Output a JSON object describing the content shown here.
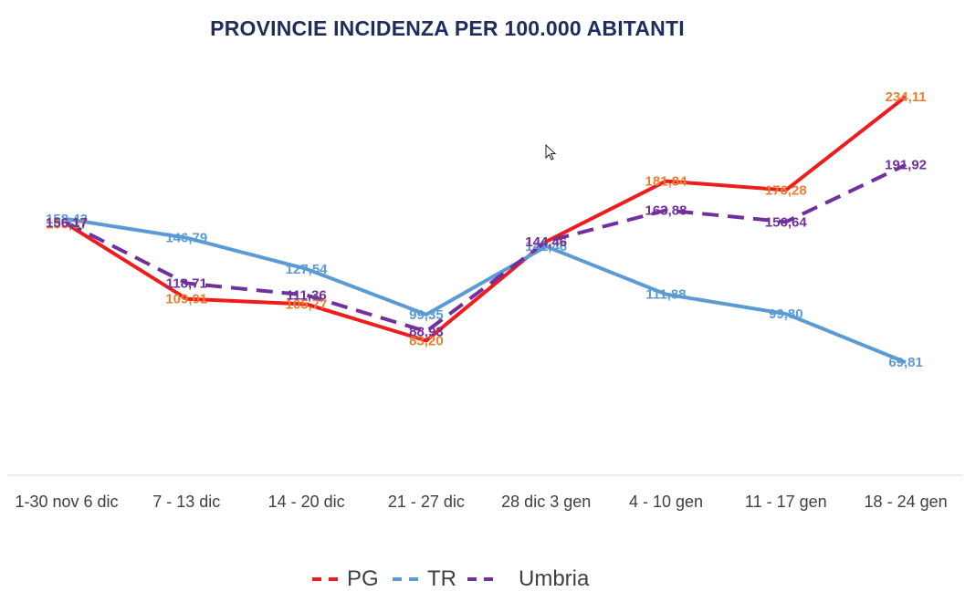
{
  "chart_data": {
    "type": "line",
    "title": "PROVINCIE INCIDENZA PER 100.000 ABITANTI",
    "categories": [
      "1-30 nov 6 dic",
      "7 - 13 dic",
      "14 - 20 dic",
      "21 - 27 dic",
      "28 dic 3 gen",
      "4 - 10 gen",
      "11 - 17 gen",
      "18 - 24 gen"
    ],
    "series": [
      {
        "name": "PG",
        "color": "#ee1c1c",
        "label_color": "#ed7d31",
        "dash": "solid",
        "values": [
          155.37,
          109.01,
          105.77,
          83.2,
          144.46,
          181.84,
          176.28,
          234.11
        ],
        "labels": [
          "155,37",
          "109,01",
          "105,77",
          "83,20",
          "144,46",
          "181,84",
          "176,28",
          "234,11"
        ]
      },
      {
        "name": "TR",
        "color": "#5b9bd5",
        "label_color": "#5b9bd5",
        "dash": "solid",
        "values": [
          158.43,
          146.79,
          127.54,
          99.35,
          141.46,
          111.88,
          99.8,
          69.81
        ],
        "labels": [
          "158,43",
          "146,79",
          "127,54",
          "99,35",
          "141,46",
          "111,88",
          "99,80",
          "69,81"
        ]
      },
      {
        "name": "Umbria",
        "color": "#7030a0",
        "label_color": "#7030a0",
        "dash": "dashed",
        "values": [
          156.17,
          118.71,
          111.36,
          88.93,
          144.46,
          163.88,
          156.64,
          191.92
        ],
        "labels": [
          "156,17",
          "118,71",
          "111,36",
          "88,93",
          "144,46",
          "163,88",
          "156,64",
          "191,92"
        ]
      }
    ],
    "ylim": [
      0,
      260
    ],
    "grid": false,
    "legend": "bottom-center"
  },
  "legend_items": [
    {
      "name": "PG",
      "color": "#ee1c1c"
    },
    {
      "name": "TR",
      "color": "#5b9bd5"
    },
    {
      "name": "Umbria",
      "color": "#7030a0"
    }
  ]
}
